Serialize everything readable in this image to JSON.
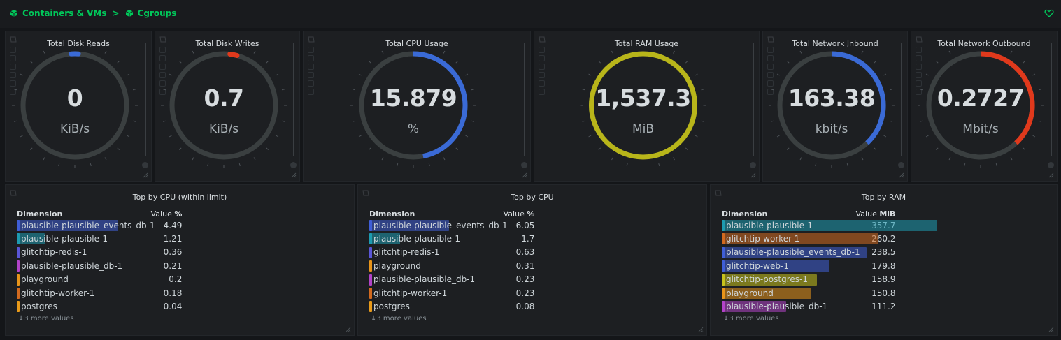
{
  "breadcrumb": {
    "section": "Containers & VMs",
    "separator": ">",
    "page": "Cgroups"
  },
  "gauges": [
    {
      "title": "Total Disk Reads",
      "value": "0",
      "unit": "KiB/s",
      "color": "#3a6ad6",
      "fraction": 0.0,
      "mode": "dot"
    },
    {
      "title": "Total Disk Writes",
      "value": "0.7",
      "unit": "KiB/s",
      "color": "#e0391c",
      "fraction": 0.03,
      "mode": "dot"
    },
    {
      "title": "Total CPU Usage",
      "value": "15.879",
      "unit": "%",
      "color": "#3a6ad6",
      "fraction": 0.47,
      "mode": "arc"
    },
    {
      "title": "Total RAM Usage",
      "value": "1,537.3",
      "unit": "MiB",
      "color": "#b8b51a",
      "fraction": 1.0,
      "mode": "arc"
    },
    {
      "title": "Total Network Inbound",
      "value": "163.38",
      "unit": "kbit/s",
      "color": "#3a6ad6",
      "fraction": 0.38,
      "mode": "arc"
    },
    {
      "title": "Total Network Outbound",
      "value": "0.2727",
      "unit": "Mbit/s",
      "color": "#e0391c",
      "fraction": 0.38,
      "mode": "arc"
    }
  ],
  "tables": [
    {
      "title": "Top by CPU (within limit)",
      "dim_header": "Dimension",
      "val_header_prefix": "Value ",
      "val_header_unit": "%",
      "more": "↓3 more values",
      "rows": [
        {
          "name": "plausible-plausible_events_db-1",
          "value": "4.49",
          "color": "#3f5ed6",
          "share": 0.33
        },
        {
          "name": "plausible-plausible-1",
          "value": "1.21",
          "color": "#1d9bb0",
          "share": 0.09
        },
        {
          "name": "glitchtip-redis-1",
          "value": "0.36",
          "color": "#5a56d6",
          "share": 0.0
        },
        {
          "name": "plausible-plausible_db-1",
          "value": "0.21",
          "color": "#b243c8",
          "share": 0.0
        },
        {
          "name": "playground",
          "value": "0.2",
          "color": "#e8941a",
          "share": 0.0
        },
        {
          "name": "glitchtip-worker-1",
          "value": "0.18",
          "color": "#d26a1f",
          "share": 0.0
        },
        {
          "name": "postgres",
          "value": "0.04",
          "color": "#e89a1a",
          "share": 0.0
        }
      ]
    },
    {
      "title": "Top by CPU",
      "dim_header": "Dimension",
      "val_header_prefix": "Value ",
      "val_header_unit": "%",
      "more": "↓3 more values",
      "rows": [
        {
          "name": "plausible-plausible_events_db-1",
          "value": "6.05",
          "color": "#3f5ed6",
          "share": 0.26
        },
        {
          "name": "plausible-plausible-1",
          "value": "1.7",
          "color": "#1d9bb0",
          "share": 0.1
        },
        {
          "name": "glitchtip-redis-1",
          "value": "0.63",
          "color": "#5a56d6",
          "share": 0.0
        },
        {
          "name": "playground",
          "value": "0.31",
          "color": "#e8941a",
          "share": 0.0
        },
        {
          "name": "plausible-plausible_db-1",
          "value": "0.23",
          "color": "#b243c8",
          "share": 0.0
        },
        {
          "name": "glitchtip-worker-1",
          "value": "0.23",
          "color": "#d26a1f",
          "share": 0.0
        },
        {
          "name": "postgres",
          "value": "0.08",
          "color": "#e89a1a",
          "share": 0.0
        }
      ]
    },
    {
      "title": "Top by RAM",
      "dim_header": "Dimension",
      "val_header_prefix": "Value ",
      "val_header_unit": "MiB",
      "more": "↓3 more values",
      "rows": [
        {
          "name": "plausible-plausible-1",
          "value": "357.7",
          "color": "#1d9bb0",
          "share": 0.7
        },
        {
          "name": "glitchtip-worker-1",
          "value": "260.2",
          "color": "#d26a1f",
          "share": 0.51
        },
        {
          "name": "plausible-plausible_events_db-1",
          "value": "238.5",
          "color": "#3f5ed6",
          "share": 0.47
        },
        {
          "name": "glitchtip-web-1",
          "value": "179.8",
          "color": "#3f5ed6",
          "share": 0.35
        },
        {
          "name": "glitchtip-postgres-1",
          "value": "158.9",
          "color": "#c8c21c",
          "share": 0.31
        },
        {
          "name": "playground",
          "value": "150.8",
          "color": "#e8941a",
          "share": 0.29
        },
        {
          "name": "plausible-plausible_db-1",
          "value": "111.2",
          "color": "#b243c8",
          "share": 0.21
        }
      ]
    }
  ]
}
